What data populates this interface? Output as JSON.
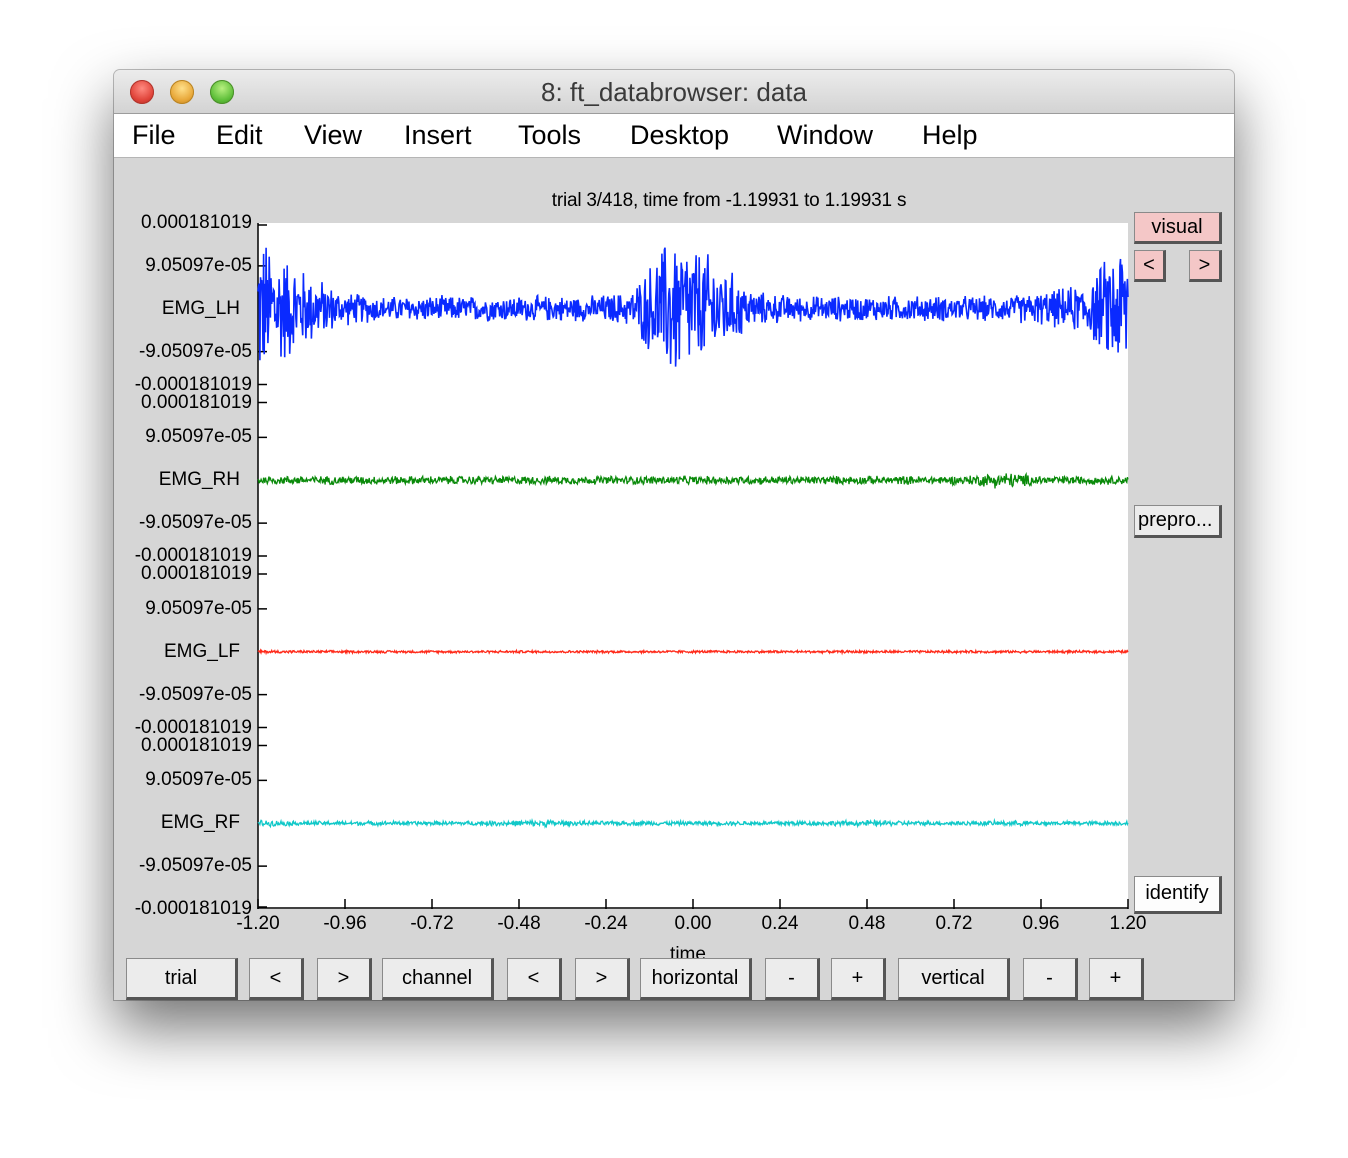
{
  "window": {
    "title": "8: ft_databrowser: data",
    "menu": [
      "File",
      "Edit",
      "View",
      "Insert",
      "Tools",
      "Desktop",
      "Window",
      "Help"
    ]
  },
  "plot": {
    "title": "trial 3/418, time from -1.19931 to 1.19931 s",
    "xlabel": "time",
    "xticks": [
      "-1.20",
      "-0.96",
      "-0.72",
      "-0.48",
      "-0.24",
      "0.00",
      "0.24",
      "0.48",
      "0.72",
      "0.96",
      "1.20"
    ],
    "ytick_top": "0.000181019",
    "ytick_upper": "9.05097e-05",
    "ytick_lower": "-9.05097e-05",
    "ytick_bottom": "-0.000181019"
  },
  "chart_data": {
    "type": "line",
    "title": "trial 3/418, time from -1.19931 to 1.19931 s",
    "xlabel": "time",
    "ylabel": "",
    "xlim": [
      -1.2,
      1.2
    ],
    "channel_ylim": [
      -0.000181019,
      0.000181019
    ],
    "series": [
      {
        "name": "EMG_LH",
        "color": "#0a2aff",
        "envelope_amplitude": [
          0.00018,
          0.0001,
          4e-05,
          3e-05,
          3e-05,
          3e-05,
          3e-05,
          3e-05,
          3e-05,
          4e-05,
          0.00018,
          0.00012,
          4e-05,
          3e-05,
          3e-05,
          3e-05,
          3e-05,
          3e-05,
          3e-05,
          4e-05,
          6e-05,
          0.00018
        ]
      },
      {
        "name": "EMG_RH",
        "color": "#0a8a0a",
        "envelope_amplitude": [
          1e-05,
          1e-05,
          1e-05,
          1e-05,
          1e-05,
          1e-05,
          1e-05,
          1e-05,
          1e-05,
          1e-05,
          1e-05,
          1e-05,
          1e-05,
          1e-05,
          1e-05,
          1e-05,
          1e-05,
          1e-05,
          2e-05,
          1e-05,
          1e-05,
          1e-05
        ]
      },
      {
        "name": "EMG_LF",
        "color": "#ff2a1a",
        "envelope_amplitude": [
          4e-06,
          3e-06,
          3e-06,
          3e-06,
          3e-06,
          3e-06,
          3e-06,
          3e-06,
          3e-06,
          3e-06,
          3e-06,
          3e-06,
          3e-06,
          3e-06,
          3e-06,
          3e-06,
          3e-06,
          3e-06,
          3e-06,
          3e-06,
          3e-06,
          3e-06
        ]
      },
      {
        "name": "EMG_RF",
        "color": "#10c8c8",
        "envelope_amplitude": [
          8e-06,
          5e-06,
          5e-06,
          5e-06,
          5e-06,
          5e-06,
          7e-06,
          8e-06,
          5e-06,
          5e-06,
          5e-06,
          5e-06,
          5e-06,
          6e-06,
          6e-06,
          7e-06,
          5e-06,
          5e-06,
          6e-06,
          5e-06,
          5e-06,
          5e-06
        ]
      }
    ]
  },
  "controls": {
    "visual": "visual",
    "prev": "<",
    "next": ">",
    "prepro": "prepro...",
    "identify": "identify",
    "bottom": {
      "trial": "trial",
      "trial_prev": "<",
      "trial_next": ">",
      "channel": "channel",
      "channel_prev": "<",
      "channel_next": ">",
      "horizontal": "horizontal",
      "horizontal_minus": "-",
      "horizontal_plus": "+",
      "vertical": "vertical",
      "vertical_minus": "-",
      "vertical_plus": "+"
    }
  }
}
